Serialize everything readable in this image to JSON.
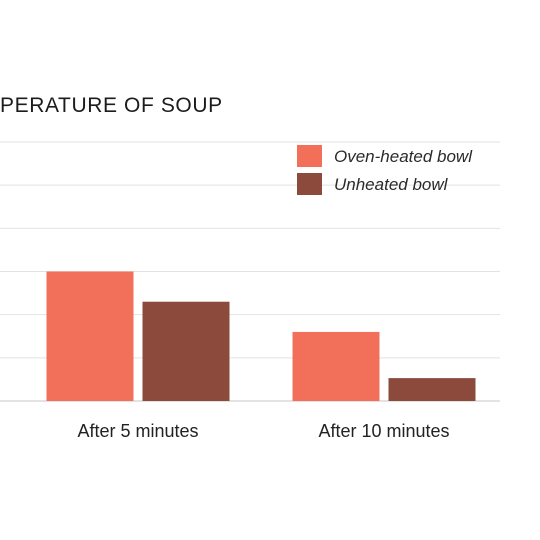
{
  "chart_data": {
    "type": "bar",
    "title": "PERATURE OF SOUP",
    "xlabel": "",
    "ylabel": "",
    "categories": [
      "After 5 minutes",
      "After 10 minutes"
    ],
    "series": [
      {
        "name": "Oven-heated bowl",
        "values": [
          3,
          1.6
        ],
        "color": "#f2705a"
      },
      {
        "name": "Unheated bowl",
        "values": [
          2.3,
          0.53
        ],
        "color": "#8b4a3b"
      }
    ],
    "ylim": [
      0,
      6
    ],
    "grid": true,
    "legend": "top-right"
  }
}
